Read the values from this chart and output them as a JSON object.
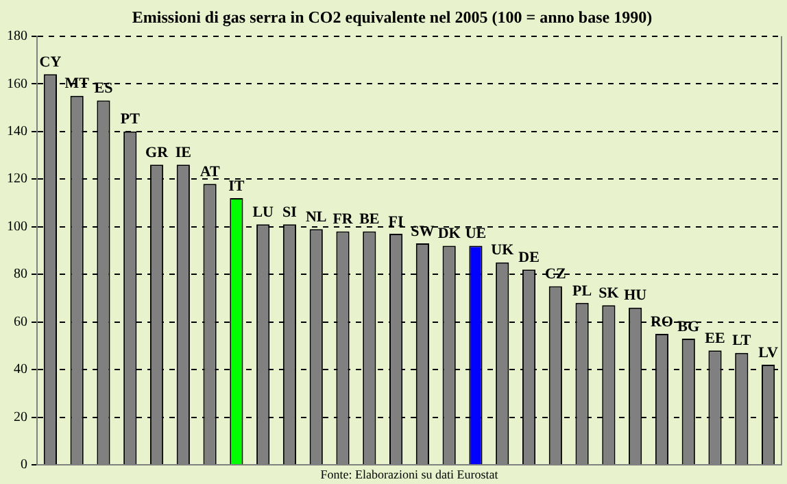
{
  "chart_data": {
    "type": "bar",
    "title": "Emissioni di gas serra in CO2 equivalente nel 2005 (100 = anno base 1990)",
    "categories": [
      "CY",
      "MT",
      "ES",
      "PT",
      "GR",
      "IE",
      "AT",
      "IT",
      "LU",
      "SI",
      "NL",
      "FR",
      "BE",
      "FI",
      "SW",
      "DK",
      "UE",
      "UK",
      "DE",
      "CZ",
      "PL",
      "SK",
      "HU",
      "RO",
      "BG",
      "EE",
      "LT",
      "LV"
    ],
    "values": [
      164,
      155,
      153,
      140,
      126,
      126,
      118,
      112,
      101,
      101,
      99,
      98,
      98,
      97,
      93,
      92,
      92,
      85,
      82,
      75,
      68,
      67,
      66,
      55,
      53,
      48,
      47,
      42
    ],
    "colors": [
      "#808080",
      "#808080",
      "#808080",
      "#808080",
      "#808080",
      "#808080",
      "#808080",
      "#00ff00",
      "#808080",
      "#808080",
      "#808080",
      "#808080",
      "#808080",
      "#808080",
      "#808080",
      "#808080",
      "#0000ff",
      "#808080",
      "#808080",
      "#808080",
      "#808080",
      "#808080",
      "#808080",
      "#808080",
      "#808080",
      "#808080",
      "#808080",
      "#808080"
    ],
    "ylim": [
      0,
      180
    ],
    "yticks": [
      0,
      20,
      40,
      60,
      80,
      100,
      120,
      140,
      160,
      180
    ],
    "grid": "y",
    "legend": false,
    "annotations": [
      "Fonte: Elaborazioni su dati Eurostat"
    ]
  }
}
